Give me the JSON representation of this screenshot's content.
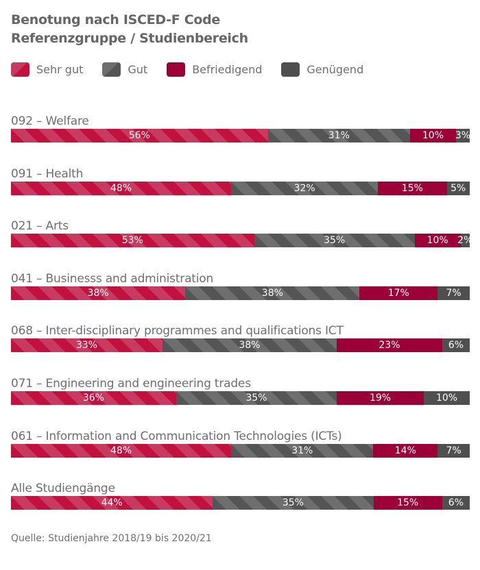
{
  "chart_data": {
    "type": "bar",
    "orientation": "horizontal",
    "stacked": true,
    "title": "Benotung nach ISCED-F Code",
    "subtitle": "Referenzgruppe / Studienbereich",
    "legend_position": "top-left",
    "categories": [
      "092 – Welfare",
      "091 – Health",
      "021 – Arts",
      "041 – Businesss and administration",
      "068 – Inter-disciplinary programmes and qualifications ICT",
      "071 – Engineering and engineering trades",
      "061 – Information and Communication Technologies (ICTs)",
      "Alle Studiengänge"
    ],
    "series": [
      {
        "name": "Sehr gut",
        "color": "#c2103f",
        "stripe": "#c93a60",
        "values": [
          56,
          48,
          53,
          38,
          33,
          36,
          48,
          44
        ]
      },
      {
        "name": "Gut",
        "color": "#555555",
        "stripe": "#6e6e6e",
        "values": [
          31,
          32,
          35,
          38,
          38,
          35,
          31,
          35
        ]
      },
      {
        "name": "Befriedigend",
        "color": "#9b0037",
        "values": [
          10,
          15,
          10,
          17,
          23,
          19,
          14,
          15
        ]
      },
      {
        "name": "Genügend",
        "color": "#4f4f4f",
        "values": [
          3,
          5,
          2,
          7,
          6,
          10,
          7,
          6
        ]
      }
    ],
    "unit": "%",
    "source": "Quelle: Studienjahre 2018/19 bis 2020/21"
  }
}
